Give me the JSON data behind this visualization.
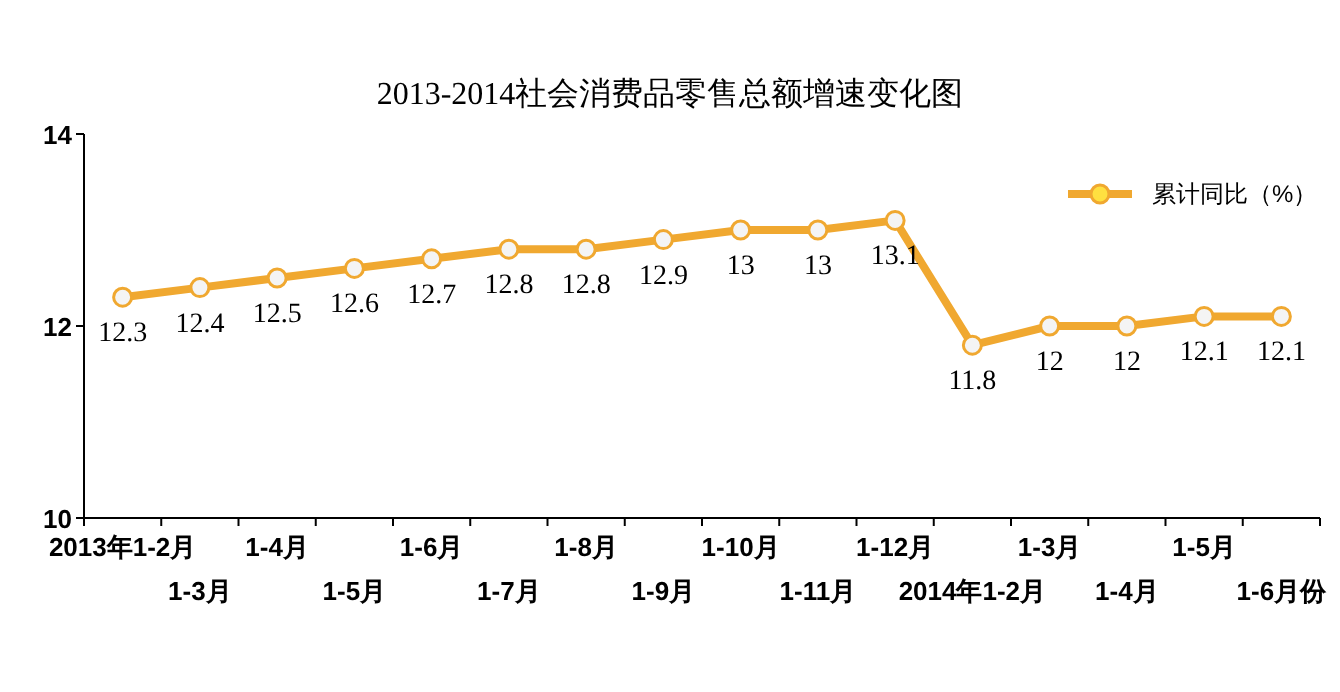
{
  "chart_data": {
    "type": "line",
    "title": "2013-2014社会消费品零售总额增速变化图",
    "categories": [
      "2013年1-2月",
      "1-3月",
      "1-4月",
      "1-5月",
      "1-6月",
      "1-7月",
      "1-8月",
      "1-9月",
      "1-10月",
      "1-11月",
      "1-12月",
      "2014年1-2月",
      "1-3月",
      "1-4月",
      "1-5月",
      "1-6月份"
    ],
    "series": [
      {
        "name": "累计同比（%）",
        "color": "#f0a830",
        "values": [
          12.3,
          12.4,
          12.5,
          12.6,
          12.7,
          12.8,
          12.8,
          12.9,
          13,
          13,
          13.1,
          11.8,
          12,
          12,
          12.1,
          12.1
        ]
      }
    ],
    "ylim": [
      10,
      14
    ],
    "yticks": [
      10,
      12,
      14
    ],
    "data_labels": true,
    "legend": "top right",
    "marker": "circle",
    "grid": false
  }
}
